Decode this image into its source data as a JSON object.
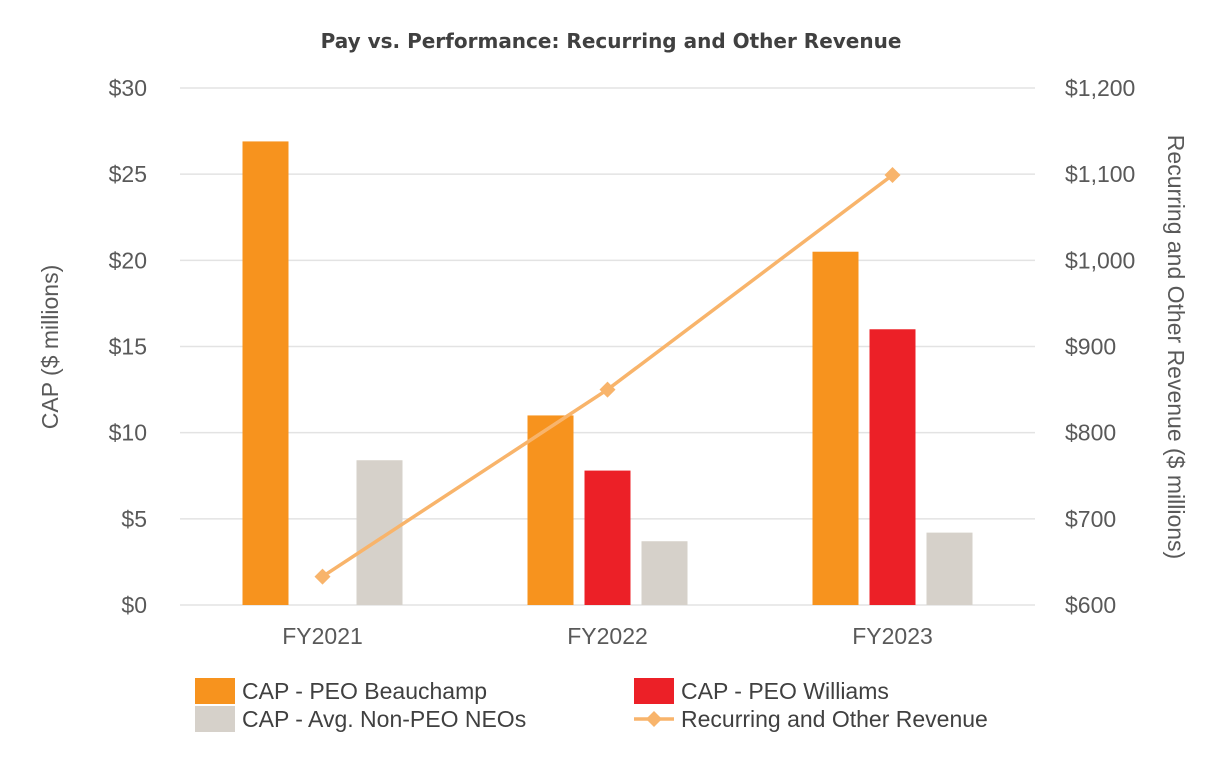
{
  "chart_data": {
    "type": "bar",
    "title": "Pay vs. Performance: Recurring and Other Revenue",
    "categories": [
      "FY2021",
      "FY2022",
      "FY2023"
    ],
    "ylabel": "CAP ($ millions)",
    "ylabel_right": "Recurring and Other Revenue ($ millions)",
    "ylim": [
      0,
      30
    ],
    "ylim_right": [
      600,
      1200
    ],
    "y_ticks": [
      "$0",
      "$5",
      "$10",
      "$15",
      "$20",
      "$25",
      "$30"
    ],
    "y_ticks_right": [
      "$600",
      "$700",
      "$800",
      "$900",
      "$1,000",
      "$1,100",
      "$1,200"
    ],
    "grid": true,
    "legend_position": "bottom",
    "series": [
      {
        "name": "CAP - PEO Beauchamp",
        "type": "bar",
        "axis": "left",
        "color": "#F7931E",
        "values": [
          26.9,
          11.0,
          20.5
        ]
      },
      {
        "name": "CAP - PEO Williams",
        "type": "bar",
        "axis": "left",
        "color": "#EC2027",
        "values": [
          null,
          7.8,
          16.0
        ]
      },
      {
        "name": "CAP - Avg. Non-PEO NEOs",
        "type": "bar",
        "axis": "left",
        "color": "#D6D1CA",
        "values": [
          8.4,
          3.7,
          4.2
        ]
      },
      {
        "name": "Recurring and Other Revenue",
        "type": "line",
        "axis": "right",
        "color": "#F8B46B",
        "values": [
          633,
          850,
          1099
        ]
      }
    ]
  }
}
